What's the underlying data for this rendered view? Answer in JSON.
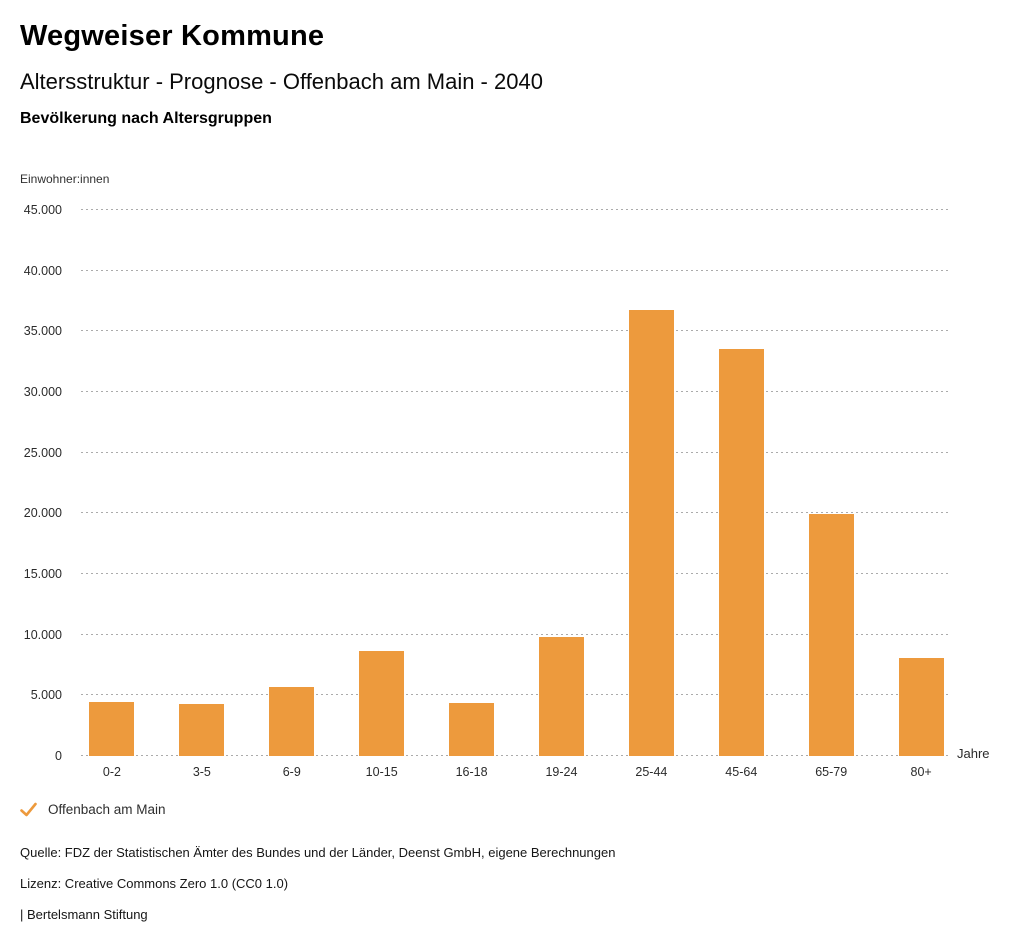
{
  "header": {
    "title": "Wegweiser Kommune",
    "subtitle": "Altersstruktur - Prognose - Offenbach am Main - 2040",
    "chart_subtitle": "Bevölkerung nach Altersgruppen"
  },
  "chart_data": {
    "type": "bar",
    "title": "Bevölkerung nach Altersgruppen",
    "ylabel": "Einwohner:innen",
    "xlabel": "Jahre",
    "categories": [
      "0-2",
      "3-5",
      "6-9",
      "10-15",
      "16-18",
      "19-24",
      "25-44",
      "45-64",
      "65-79",
      "80+"
    ],
    "series": [
      {
        "name": "Offenbach am Main",
        "values": [
          4480,
          4260,
          5680,
          8690,
          4370,
          9780,
          36780,
          33560,
          19950,
          8040
        ]
      }
    ],
    "ylim": [
      0,
      45000
    ],
    "ytick_step": 5000,
    "yticks": [
      {
        "value": 0,
        "label": "0"
      },
      {
        "value": 5000,
        "label": "5.000"
      },
      {
        "value": 10000,
        "label": "10.000"
      },
      {
        "value": 15000,
        "label": "15.000"
      },
      {
        "value": 20000,
        "label": "20.000"
      },
      {
        "value": 25000,
        "label": "25.000"
      },
      {
        "value": 30000,
        "label": "30.000"
      },
      {
        "value": 35000,
        "label": "35.000"
      },
      {
        "value": 40000,
        "label": "40.000"
      },
      {
        "value": 45000,
        "label": "45.000"
      }
    ],
    "grid": "horizontal-dotted",
    "legend_position": "bottom-left",
    "bar_color": "#ED9A3D"
  },
  "legend": {
    "check_icon": "check-icon",
    "label": "Offenbach am Main",
    "color": "#ED9A3D"
  },
  "footer": {
    "source": "Quelle: FDZ der Statistischen Ämter des Bundes und der Länder, Deenst GmbH, eigene Berechnungen",
    "license": "Lizenz: Creative Commons Zero 1.0 (CC0 1.0)",
    "attribution": "| Bertelsmann Stiftung"
  }
}
